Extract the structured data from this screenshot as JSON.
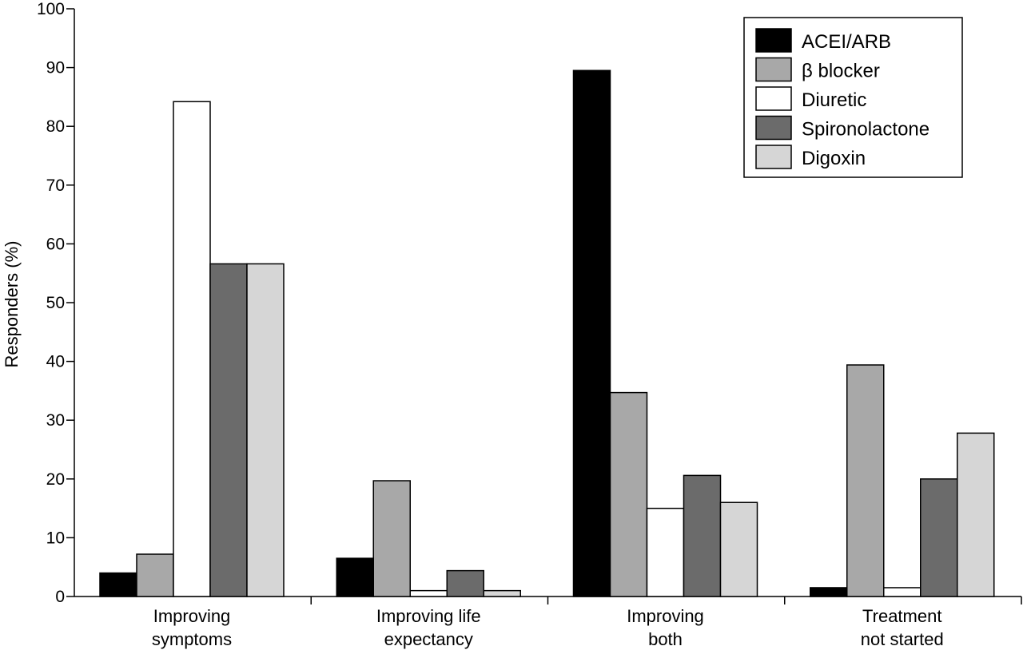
{
  "chart_data": {
    "type": "bar",
    "title": "",
    "xlabel": "",
    "ylabel": "Responders (%)",
    "ylim": [
      0,
      100
    ],
    "yticks": [
      0,
      10,
      20,
      30,
      40,
      50,
      60,
      70,
      80,
      90,
      100
    ],
    "grid": false,
    "legend_position": "top-right",
    "categories": [
      [
        "Improving",
        "symptoms"
      ],
      [
        "Improving life",
        "expectancy"
      ],
      [
        "Improving",
        "both"
      ],
      [
        "Treatment",
        "not started"
      ]
    ],
    "series": [
      {
        "name": "ACEI/ARB",
        "color": "#000000",
        "values": [
          4,
          6.5,
          89.5,
          1.5
        ]
      },
      {
        "name": "β blocker",
        "color": "#a8a8a8",
        "values": [
          7.2,
          19.7,
          34.7,
          39.4
        ]
      },
      {
        "name": "Diuretic",
        "color": "#ffffff",
        "values": [
          84.2,
          1,
          15,
          1.5
        ]
      },
      {
        "name": "Spironolactone",
        "color": "#6b6b6b",
        "values": [
          56.6,
          4.4,
          20.6,
          20
        ]
      },
      {
        "name": "Digoxin",
        "color": "#d6d6d6",
        "values": [
          56.6,
          1,
          16,
          27.8
        ]
      }
    ]
  }
}
